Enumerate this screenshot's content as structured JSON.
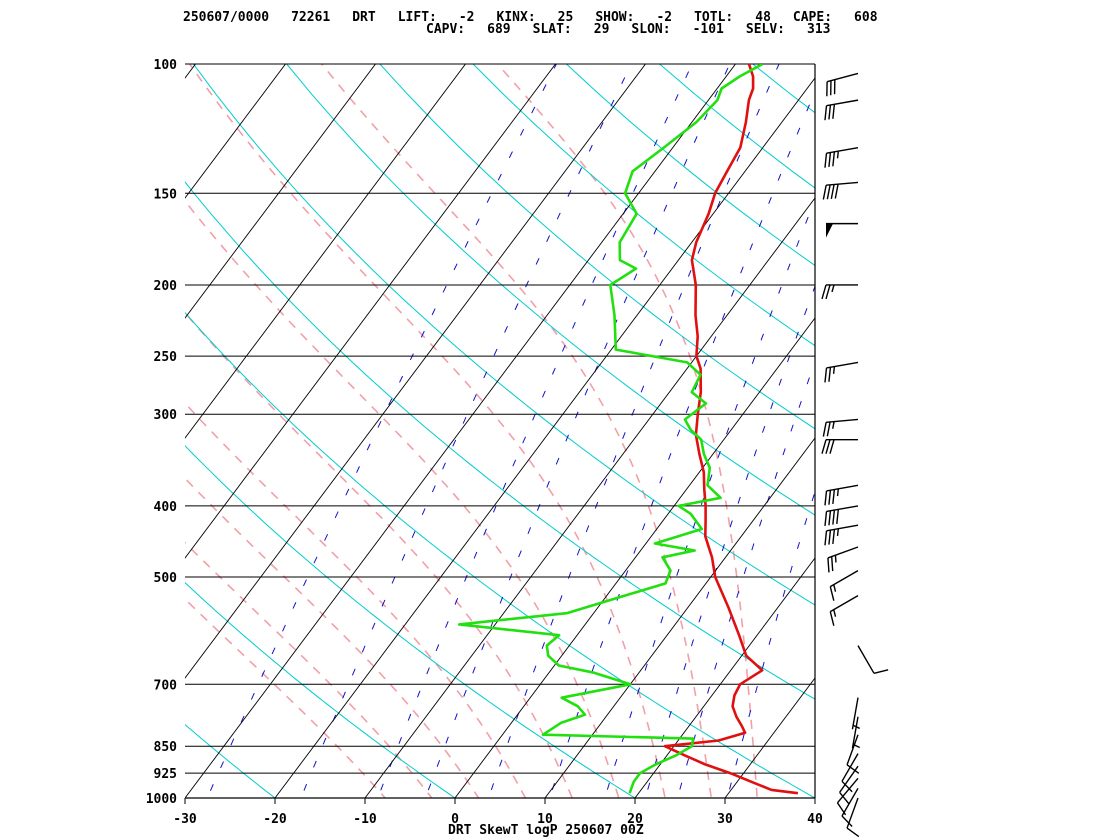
{
  "header": {
    "line1": [
      {
        "label": "250607/0000",
        "value": ""
      },
      {
        "label": "72261",
        "value": ""
      },
      {
        "label": "DRT",
        "value": ""
      },
      {
        "label": "LIFT:",
        "value": "-2"
      },
      {
        "label": "KINX:",
        "value": "25"
      },
      {
        "label": "SHOW:",
        "value": "-2"
      },
      {
        "label": "TOTL:",
        "value": "48"
      },
      {
        "label": "CAPE:",
        "value": "608"
      }
    ],
    "line2": [
      {
        "label": "CAPV:",
        "value": "689"
      },
      {
        "label": "SLAT:",
        "value": "29"
      },
      {
        "label": "SLON:",
        "value": "-101"
      },
      {
        "label": "SELV:",
        "value": "313"
      }
    ]
  },
  "colors": {
    "temperature": "#e01010",
    "dewpoint": "#22e010",
    "isotherm": "#000000",
    "dry_adiabat": "#00cccc",
    "moist_adiabat": "#f2a0a8",
    "mixing_ratio": "#1010cc",
    "isobar": "#000000"
  },
  "chart_data": {
    "type": "line",
    "title": "DRT SkewT logP 250607 00Z",
    "x_axis": {
      "label": "",
      "range": [
        -30,
        40
      ],
      "ticks": [
        -30,
        -20,
        -10,
        0,
        10,
        20,
        30,
        40
      ]
    },
    "y_axis": {
      "label": "",
      "scale": "log",
      "range": [
        1000,
        100
      ],
      "ticks": [
        100,
        150,
        200,
        250,
        300,
        400,
        500,
        700,
        850,
        925,
        1000
      ]
    },
    "series": [
      {
        "key": "temperature",
        "points": [
          [
            985,
            37.7
          ],
          [
            975,
            34.5
          ],
          [
            950,
            31.5
          ],
          [
            925,
            28.5
          ],
          [
            900,
            25.0
          ],
          [
            875,
            22.0
          ],
          [
            850,
            19.0
          ],
          [
            835,
            24.5
          ],
          [
            815,
            26.8
          ],
          [
            800,
            26.0
          ],
          [
            775,
            24.5
          ],
          [
            750,
            23.2
          ],
          [
            725,
            22.5
          ],
          [
            700,
            22.2
          ],
          [
            670,
            23.5
          ],
          [
            640,
            20.5
          ],
          [
            600,
            18.0
          ],
          [
            550,
            14.5
          ],
          [
            500,
            10.5
          ],
          [
            470,
            8.5
          ],
          [
            440,
            6.0
          ],
          [
            420,
            4.8
          ],
          [
            400,
            3.5
          ],
          [
            380,
            2.0
          ],
          [
            360,
            0.5
          ],
          [
            340,
            -1.5
          ],
          [
            320,
            -3.5
          ],
          [
            300,
            -5.0
          ],
          [
            280,
            -6.5
          ],
          [
            260,
            -8.5
          ],
          [
            250,
            -10.0
          ],
          [
            235,
            -11.5
          ],
          [
            220,
            -13.5
          ],
          [
            200,
            -16.0
          ],
          [
            185,
            -18.5
          ],
          [
            175,
            -19.5
          ],
          [
            160,
            -20.5
          ],
          [
            150,
            -21.5
          ],
          [
            140,
            -22.0
          ],
          [
            130,
            -22.5
          ],
          [
            120,
            -24.0
          ],
          [
            112,
            -25.5
          ],
          [
            108,
            -26.0
          ],
          [
            104,
            -27.0
          ],
          [
            100,
            -28.5
          ]
        ]
      },
      {
        "key": "dewpoint",
        "points": [
          [
            985,
            19.0
          ],
          [
            950,
            18.5
          ],
          [
            925,
            18.5
          ],
          [
            900,
            19.5
          ],
          [
            875,
            21.0
          ],
          [
            850,
            22.0
          ],
          [
            830,
            21.5
          ],
          [
            820,
            4.5
          ],
          [
            790,
            5.5
          ],
          [
            770,
            7.5
          ],
          [
            750,
            6.0
          ],
          [
            730,
            3.5
          ],
          [
            700,
            10.0
          ],
          [
            675,
            5.0
          ],
          [
            660,
            0.5
          ],
          [
            640,
            -1.5
          ],
          [
            620,
            -2.5
          ],
          [
            600,
            -2.0
          ],
          [
            580,
            -14.0
          ],
          [
            560,
            -3.0
          ],
          [
            510,
            5.5
          ],
          [
            490,
            5.0
          ],
          [
            470,
            3.0
          ],
          [
            460,
            6.0
          ],
          [
            450,
            1.0
          ],
          [
            430,
            5.0
          ],
          [
            410,
            2.5
          ],
          [
            400,
            0.5
          ],
          [
            390,
            4.5
          ],
          [
            375,
            2.0
          ],
          [
            355,
            0.8
          ],
          [
            340,
            -1.0
          ],
          [
            325,
            -2.5
          ],
          [
            315,
            -4.5
          ],
          [
            305,
            -6.0
          ],
          [
            290,
            -5.0
          ],
          [
            280,
            -7.5
          ],
          [
            265,
            -8.0
          ],
          [
            255,
            -10.5
          ],
          [
            245,
            -19.5
          ],
          [
            220,
            -22.5
          ],
          [
            200,
            -25.5
          ],
          [
            190,
            -24.0
          ],
          [
            185,
            -26.5
          ],
          [
            175,
            -28.0
          ],
          [
            160,
            -28.5
          ],
          [
            150,
            -31.5
          ],
          [
            140,
            -32.5
          ],
          [
            130,
            -31.0
          ],
          [
            120,
            -29.5
          ],
          [
            112,
            -29.0
          ],
          [
            108,
            -29.5
          ],
          [
            104,
            -28.5
          ],
          [
            100,
            -27.0
          ]
        ]
      }
    ],
    "winds": [
      {
        "p": 1000,
        "spd": 10,
        "dir": 200
      },
      {
        "p": 970,
        "spd": 10,
        "dir": 210
      },
      {
        "p": 940,
        "spd": 10,
        "dir": 220
      },
      {
        "p": 905,
        "spd": 10,
        "dir": 215
      },
      {
        "p": 870,
        "spd": 10,
        "dir": 210
      },
      {
        "p": 820,
        "spd": 10,
        "dir": 200
      },
      {
        "p": 775,
        "spd": 5,
        "dir": 190
      },
      {
        "p": 730,
        "spd": 5,
        "dir": 190
      },
      {
        "p": 620,
        "spd": 10,
        "dir": 150
      },
      {
        "p": 530,
        "spd": 15,
        "dir": 240
      },
      {
        "p": 490,
        "spd": 15,
        "dir": 240
      },
      {
        "p": 455,
        "spd": 25,
        "dir": 250
      },
      {
        "p": 425,
        "spd": 35,
        "dir": 260
      },
      {
        "p": 400,
        "spd": 40,
        "dir": 260
      },
      {
        "p": 375,
        "spd": 35,
        "dir": 260
      },
      {
        "p": 325,
        "spd": 30,
        "dir": 270
      },
      {
        "p": 305,
        "spd": 25,
        "dir": 265
      },
      {
        "p": 255,
        "spd": 25,
        "dir": 260
      },
      {
        "p": 200,
        "spd": 25,
        "dir": 270
      },
      {
        "p": 165,
        "spd": 50,
        "dir": 270
      },
      {
        "p": 145,
        "spd": 40,
        "dir": 265
      },
      {
        "p": 130,
        "spd": 35,
        "dir": 260
      },
      {
        "p": 112,
        "spd": 30,
        "dir": 260
      },
      {
        "p": 103,
        "spd": 30,
        "dir": 255
      }
    ]
  }
}
